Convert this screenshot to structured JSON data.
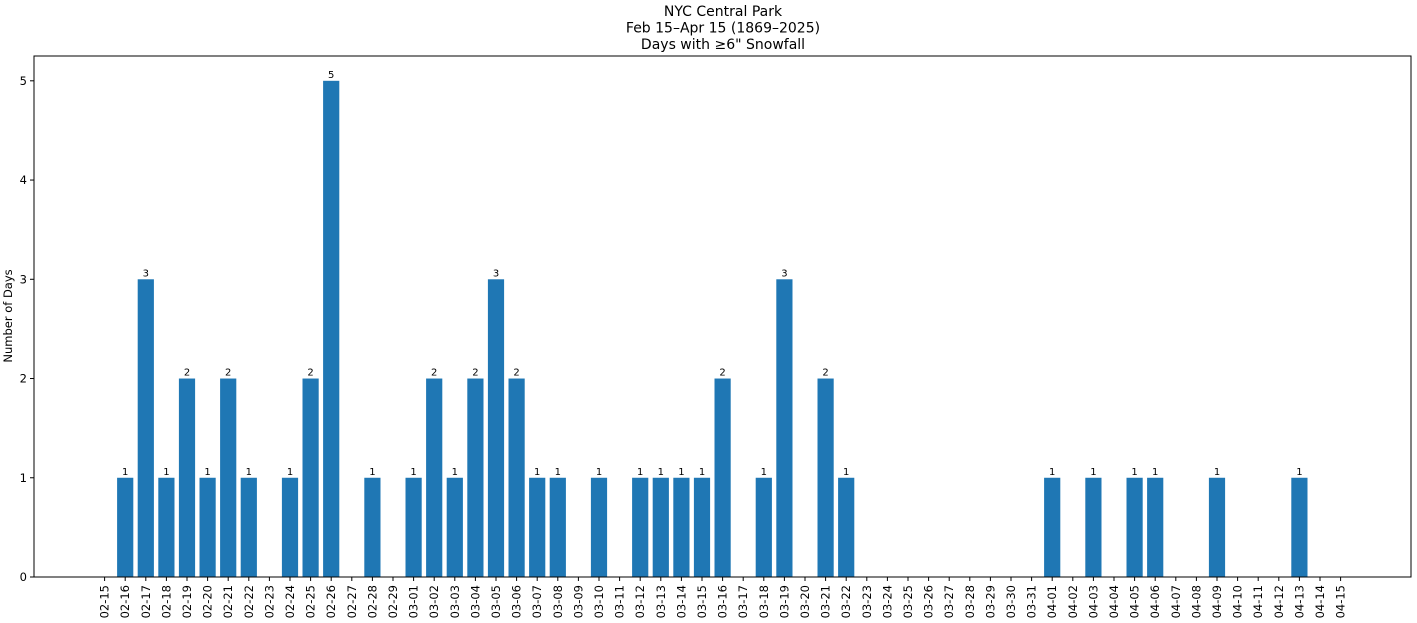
{
  "chart_data": {
    "type": "bar",
    "title": [
      "NYC Central Park",
      "Feb 15–Apr 15 (1869–2025)",
      "Days with ≥6\" Snowfall"
    ],
    "xlabel": "",
    "ylabel": "Number of Days",
    "ylim": [
      0,
      5.25
    ],
    "yticks": [
      0,
      1,
      2,
      3,
      4,
      5
    ],
    "grid": false,
    "bar_color": "#1f77b4",
    "categories": [
      "02-15",
      "02-16",
      "02-17",
      "02-18",
      "02-19",
      "02-20",
      "02-21",
      "02-22",
      "02-23",
      "02-24",
      "02-25",
      "02-26",
      "02-27",
      "02-28",
      "02-29",
      "03-01",
      "03-02",
      "03-03",
      "03-04",
      "03-05",
      "03-06",
      "03-07",
      "03-08",
      "03-09",
      "03-10",
      "03-11",
      "03-12",
      "03-13",
      "03-14",
      "03-15",
      "03-16",
      "03-17",
      "03-18",
      "03-19",
      "03-20",
      "03-21",
      "03-22",
      "03-23",
      "03-24",
      "03-25",
      "03-26",
      "03-27",
      "03-28",
      "03-29",
      "03-30",
      "03-31",
      "04-01",
      "04-02",
      "04-03",
      "04-04",
      "04-05",
      "04-06",
      "04-07",
      "04-08",
      "04-09",
      "04-10",
      "04-11",
      "04-12",
      "04-13",
      "04-14",
      "04-15"
    ],
    "values": [
      0,
      1,
      3,
      1,
      2,
      1,
      2,
      1,
      0,
      1,
      2,
      5,
      0,
      1,
      0,
      1,
      2,
      1,
      2,
      3,
      2,
      1,
      1,
      0,
      1,
      0,
      1,
      1,
      1,
      1,
      2,
      0,
      1,
      3,
      0,
      2,
      1,
      0,
      0,
      0,
      0,
      0,
      0,
      0,
      0,
      0,
      1,
      0,
      1,
      0,
      1,
      1,
      0,
      0,
      1,
      0,
      0,
      0,
      1,
      0,
      0
    ]
  }
}
